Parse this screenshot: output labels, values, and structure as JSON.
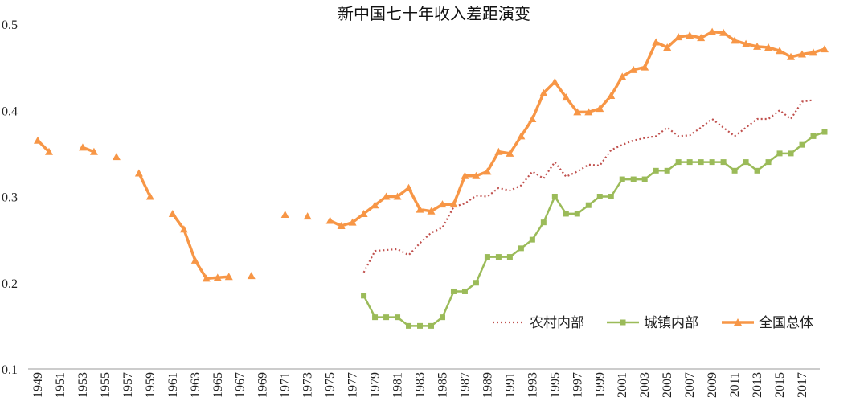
{
  "chart_data": {
    "type": "line",
    "title": "新中国七十年收入差距演变",
    "xlabel": "",
    "ylabel": "",
    "ylim": [
      0.1,
      0.5
    ],
    "yticks": [
      "0.1",
      "0.2",
      "0.3",
      "0.4",
      "0.5"
    ],
    "xlim": [
      1949,
      2018
    ],
    "xticks": [
      "1949",
      "1951",
      "1953",
      "1955",
      "1957",
      "1959",
      "1961",
      "1963",
      "1965",
      "1967",
      "1969",
      "1971",
      "1973",
      "1975",
      "1977",
      "1979",
      "1981",
      "1983",
      "1985",
      "1987",
      "1989",
      "1991",
      "1993",
      "1995",
      "1997",
      "1999",
      "2001",
      "2003",
      "2005",
      "2007",
      "2009",
      "2011",
      "2013",
      "2015",
      "2017"
    ],
    "grid": false,
    "legend_position": "bottom-right",
    "series": [
      {
        "name": "农村内部",
        "color": "#c0504d",
        "style": "dotted",
        "marker": "none",
        "points": [
          [
            1978,
            0.212
          ],
          [
            1979,
            0.237
          ],
          [
            1980,
            0.238
          ],
          [
            1981,
            0.239
          ],
          [
            1982,
            0.232
          ],
          [
            1983,
            0.246
          ],
          [
            1984,
            0.258
          ],
          [
            1985,
            0.264
          ],
          [
            1986,
            0.288
          ],
          [
            1987,
            0.292
          ],
          [
            1988,
            0.301
          ],
          [
            1989,
            0.3
          ],
          [
            1990,
            0.31
          ],
          [
            1991,
            0.307
          ],
          [
            1992,
            0.313
          ],
          [
            1993,
            0.329
          ],
          [
            1994,
            0.321
          ],
          [
            1995,
            0.34
          ],
          [
            1996,
            0.323
          ],
          [
            1997,
            0.329
          ],
          [
            1998,
            0.337
          ],
          [
            1999,
            0.336
          ],
          [
            2000,
            0.354
          ],
          [
            2001,
            0.36
          ],
          [
            2002,
            0.365
          ],
          [
            2003,
            0.368
          ],
          [
            2004,
            0.37
          ],
          [
            2005,
            0.38
          ],
          [
            2006,
            0.37
          ],
          [
            2007,
            0.371
          ],
          [
            2008,
            0.38
          ],
          [
            2009,
            0.39
          ],
          [
            2010,
            0.38
          ],
          [
            2011,
            0.37
          ],
          [
            2012,
            0.38
          ],
          [
            2013,
            0.39
          ],
          [
            2014,
            0.39
          ],
          [
            2015,
            0.4
          ],
          [
            2016,
            0.39
          ],
          [
            2017,
            0.41
          ],
          [
            2018,
            0.412
          ]
        ]
      },
      {
        "name": "城镇内部",
        "color": "#9bbb59",
        "style": "solid",
        "marker": "square",
        "points": [
          [
            1978,
            0.185
          ],
          [
            1979,
            0.16
          ],
          [
            1980,
            0.16
          ],
          [
            1981,
            0.16
          ],
          [
            1982,
            0.15
          ],
          [
            1983,
            0.15
          ],
          [
            1984,
            0.15
          ],
          [
            1985,
            0.16
          ],
          [
            1986,
            0.19
          ],
          [
            1987,
            0.19
          ],
          [
            1988,
            0.2
          ],
          [
            1989,
            0.23
          ],
          [
            1990,
            0.23
          ],
          [
            1991,
            0.23
          ],
          [
            1992,
            0.24
          ],
          [
            1993,
            0.25
          ],
          [
            1994,
            0.27
          ],
          [
            1995,
            0.3
          ],
          [
            1996,
            0.28
          ],
          [
            1997,
            0.28
          ],
          [
            1998,
            0.29
          ],
          [
            1999,
            0.3
          ],
          [
            2000,
            0.3
          ],
          [
            2001,
            0.32
          ],
          [
            2002,
            0.32
          ],
          [
            2003,
            0.32
          ],
          [
            2004,
            0.33
          ],
          [
            2005,
            0.33
          ],
          [
            2006,
            0.34
          ],
          [
            2007,
            0.34
          ],
          [
            2008,
            0.34
          ],
          [
            2009,
            0.34
          ],
          [
            2010,
            0.34
          ],
          [
            2011,
            0.33
          ],
          [
            2012,
            0.34
          ],
          [
            2013,
            0.33
          ],
          [
            2014,
            0.34
          ],
          [
            2015,
            0.35
          ],
          [
            2016,
            0.35
          ],
          [
            2017,
            0.36
          ],
          [
            2018,
            0.37
          ],
          [
            2019,
            0.375
          ]
        ]
      },
      {
        "name": "全国总体",
        "color": "#f79646",
        "style": "solid",
        "marker": "triangle",
        "segments": [
          [
            [
              1949,
              0.365
            ],
            [
              1950,
              0.352
            ]
          ],
          [
            [
              1953,
              0.357
            ],
            [
              1954,
              0.352
            ]
          ],
          [
            [
              1956,
              0.346
            ]
          ],
          [
            [
              1958,
              0.327
            ],
            [
              1959,
              0.3
            ]
          ],
          [
            [
              1961,
              0.28
            ],
            [
              1962,
              0.262
            ],
            [
              1963,
              0.226
            ],
            [
              1964,
              0.205
            ],
            [
              1965,
              0.206
            ],
            [
              1966,
              0.207
            ]
          ],
          [
            [
              1968,
              0.208
            ]
          ],
          [
            [
              1971,
              0.279
            ]
          ],
          [
            [
              1973,
              0.277
            ]
          ],
          [
            [
              1975,
              0.272
            ],
            [
              1976,
              0.266
            ],
            [
              1977,
              0.27
            ],
            [
              1978,
              0.28
            ],
            [
              1979,
              0.29
            ],
            [
              1980,
              0.3
            ],
            [
              1981,
              0.3
            ],
            [
              1982,
              0.31
            ],
            [
              1983,
              0.285
            ],
            [
              1984,
              0.283
            ],
            [
              1985,
              0.291
            ],
            [
              1986,
              0.291
            ],
            [
              1987,
              0.324
            ],
            [
              1988,
              0.324
            ],
            [
              1989,
              0.329
            ],
            [
              1990,
              0.352
            ],
            [
              1991,
              0.35
            ],
            [
              1992,
              0.37
            ],
            [
              1993,
              0.39
            ],
            [
              1994,
              0.42
            ],
            [
              1995,
              0.433
            ],
            [
              1996,
              0.415
            ],
            [
              1997,
              0.398
            ],
            [
              1998,
              0.398
            ],
            [
              1999,
              0.402
            ],
            [
              2000,
              0.417
            ],
            [
              2001,
              0.439
            ],
            [
              2002,
              0.447
            ],
            [
              2003,
              0.45
            ],
            [
              2004,
              0.479
            ],
            [
              2005,
              0.473
            ],
            [
              2006,
              0.485
            ],
            [
              2007,
              0.487
            ],
            [
              2008,
              0.484
            ],
            [
              2009,
              0.491
            ],
            [
              2010,
              0.49
            ],
            [
              2011,
              0.481
            ],
            [
              2012,
              0.477
            ],
            [
              2013,
              0.474
            ],
            [
              2014,
              0.473
            ],
            [
              2015,
              0.469
            ],
            [
              2016,
              0.462
            ],
            [
              2017,
              0.465
            ],
            [
              2018,
              0.467
            ],
            [
              2019,
              0.471
            ]
          ]
        ]
      }
    ]
  }
}
